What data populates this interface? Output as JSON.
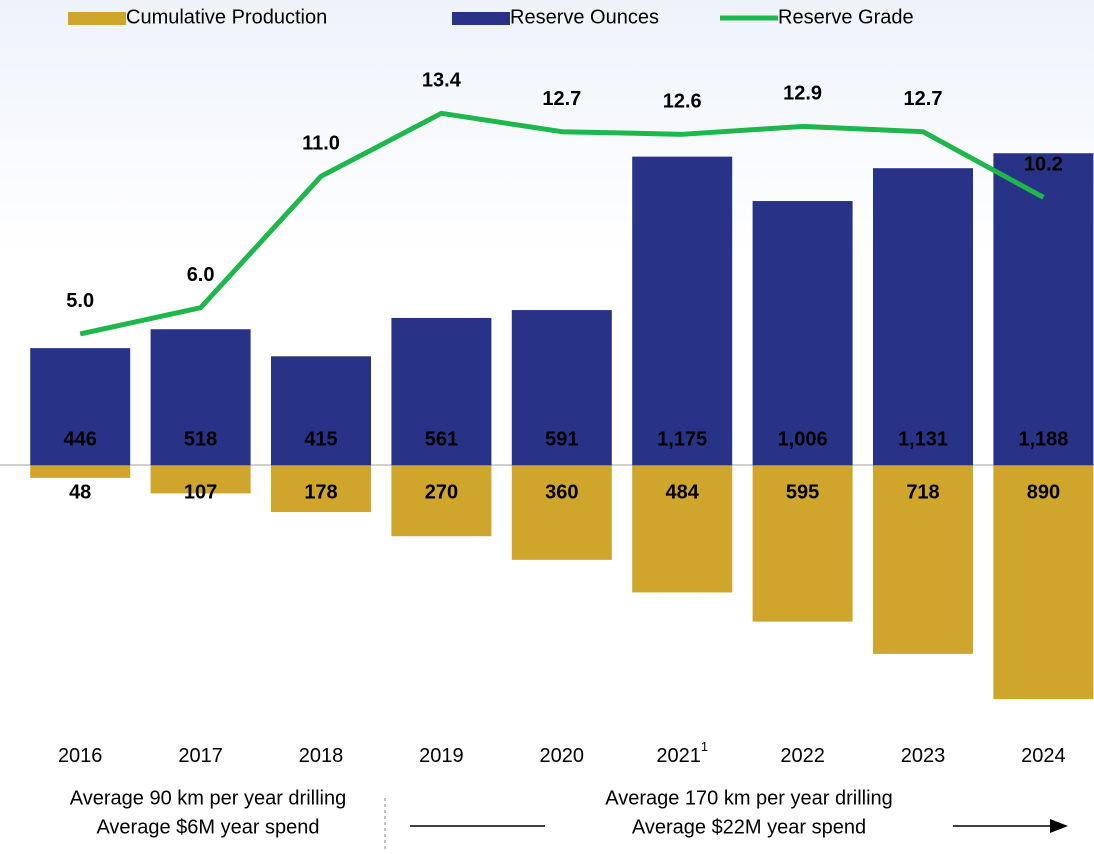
{
  "chart_data": {
    "type": "bar",
    "categories": [
      "2016",
      "2017",
      "2018",
      "2019",
      "2020",
      "2021",
      "2022",
      "2023",
      "2024"
    ],
    "category_superscripts": [
      null,
      null,
      null,
      null,
      null,
      "1",
      null,
      null,
      null
    ],
    "series": [
      {
        "name": "Cumulative Production",
        "color": "#cfa52c",
        "direction": "down",
        "values": [
          48,
          107,
          178,
          270,
          360,
          484,
          595,
          718,
          890
        ]
      },
      {
        "name": "Reserve Ounces",
        "color": "#283387",
        "values": [
          446,
          518,
          415,
          561,
          591,
          1175,
          1006,
          1131,
          1188
        ],
        "value_labels": [
          "446",
          "518",
          "415",
          "561",
          "591",
          "1,175",
          "1,006",
          "1,131",
          "1,188"
        ]
      },
      {
        "name": "Reserve Grade",
        "color": "#1db74c",
        "type": "line",
        "axis": "y2",
        "values": [
          5.0,
          6.0,
          11.0,
          13.4,
          12.7,
          12.6,
          12.9,
          12.7,
          10.2
        ],
        "value_labels": [
          "5.0",
          "6.0",
          "11.0",
          "13.4",
          "12.7",
          "12.6",
          "12.9",
          "12.7",
          "10.2"
        ]
      }
    ],
    "ylim": [
      -1000,
      1600
    ],
    "y2lim": [
      -10,
      16
    ],
    "notes": {
      "left": [
        "Average 90 km per year drilling",
        "Average $6M year spend"
      ],
      "right": [
        "Average 170 km per year drilling",
        "Average $22M year spend"
      ]
    }
  }
}
